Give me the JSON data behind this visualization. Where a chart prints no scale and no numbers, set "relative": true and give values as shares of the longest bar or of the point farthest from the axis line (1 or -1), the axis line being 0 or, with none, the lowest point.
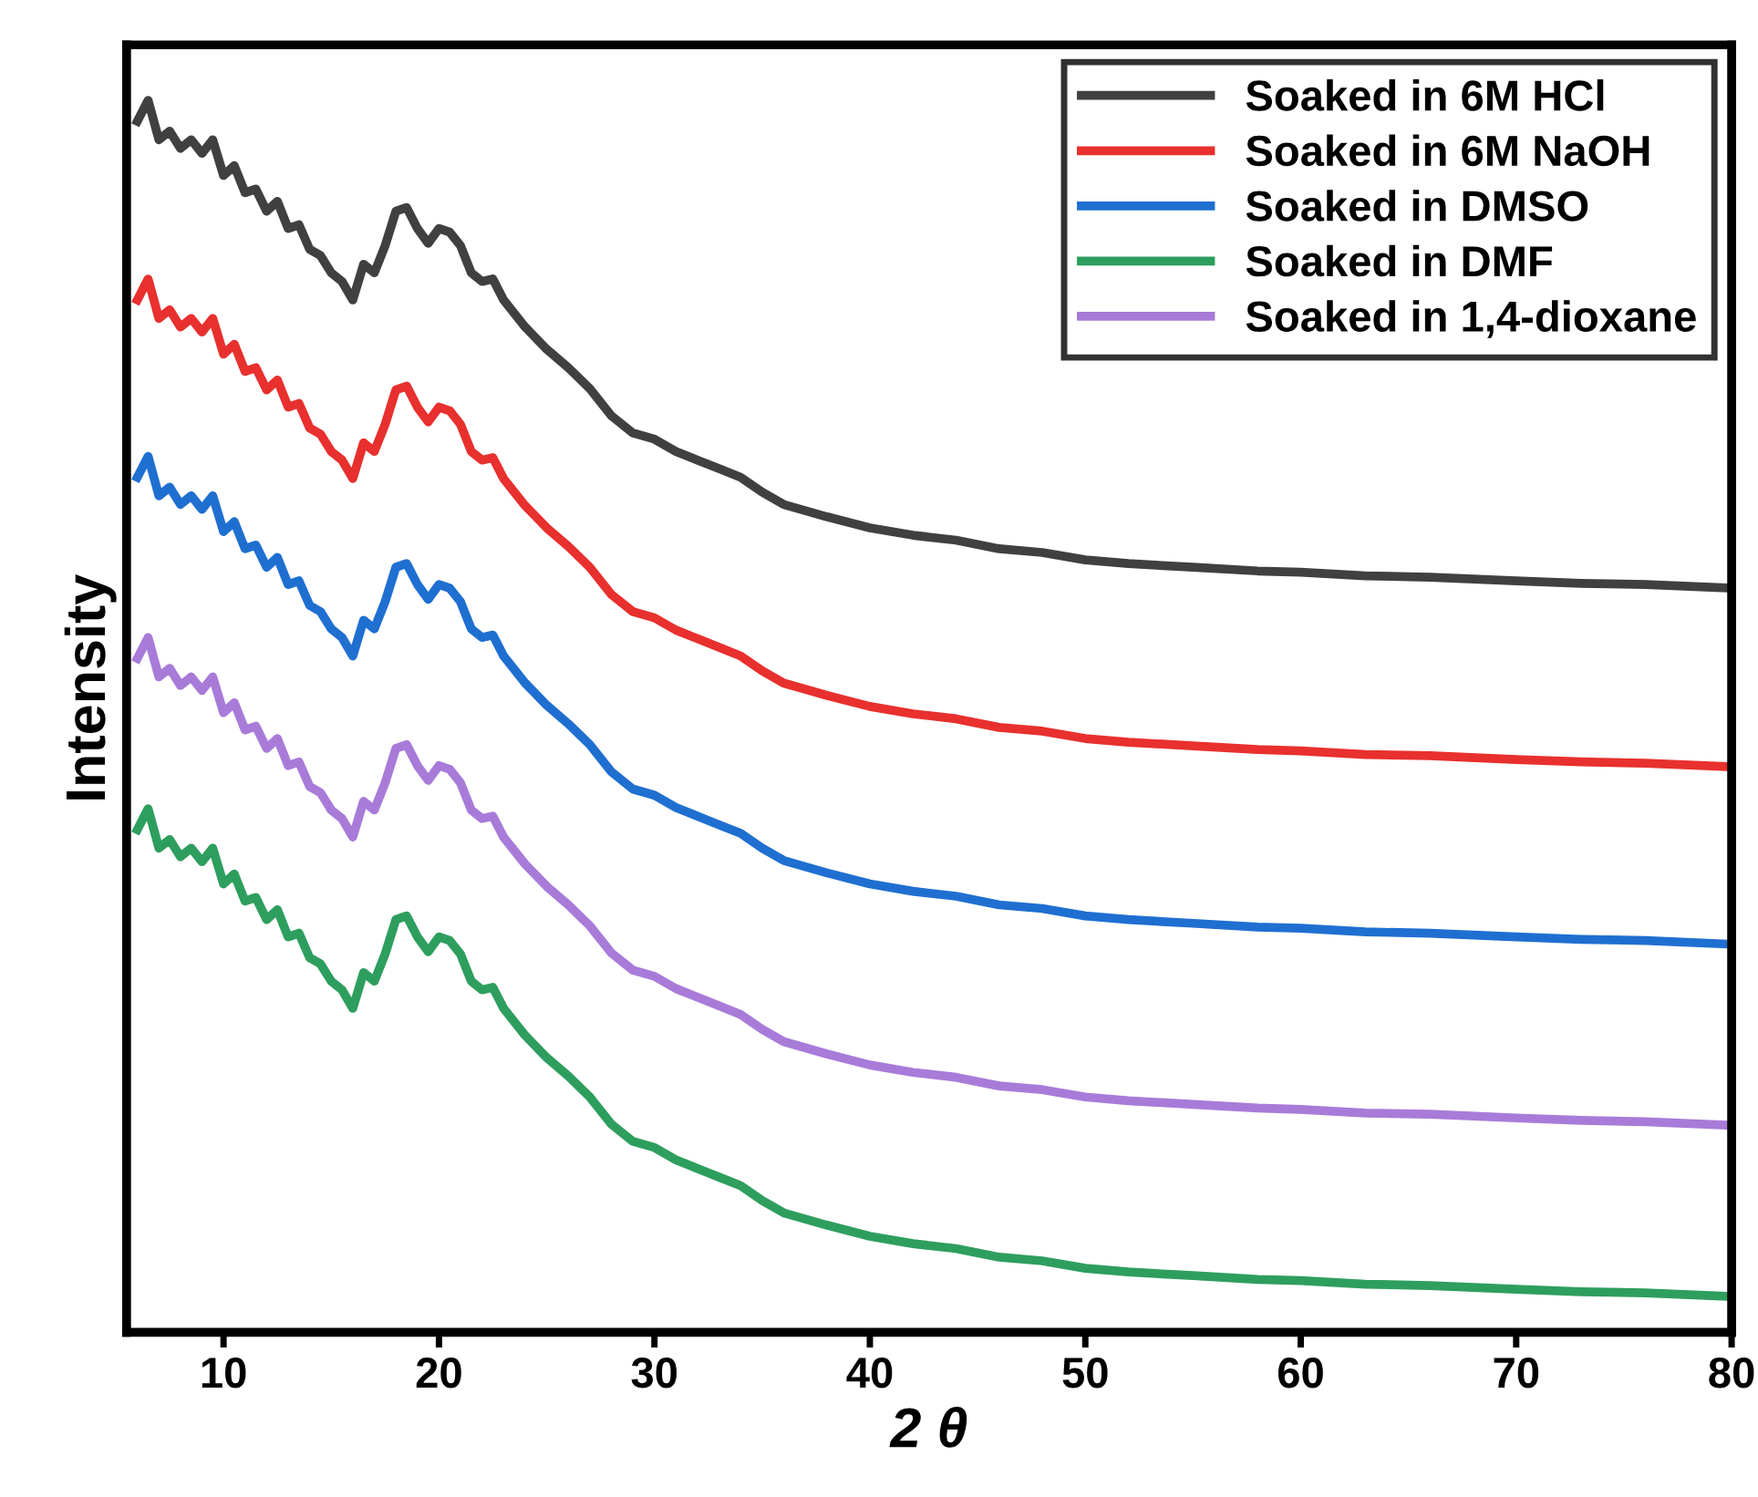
{
  "chart_data": {
    "type": "line",
    "relative": true,
    "xlabel": "2 θ",
    "ylabel": "Intensity",
    "xlim": [
      5.5,
      80
    ],
    "xticks": [
      10,
      20,
      30,
      40,
      50,
      60,
      70,
      80
    ],
    "tick_labels": "x",
    "grid": false,
    "legend": "top right",
    "marker": "none",
    "line_style": "solid",
    "x": [
      6,
      6.5,
      7,
      7.5,
      8,
      8.5,
      9,
      9.5,
      10,
      10.5,
      11,
      11.5,
      12,
      12.5,
      13,
      13.5,
      14,
      14.5,
      15,
      15.5,
      16,
      16.5,
      17,
      17.5,
      18,
      18.5,
      19,
      19.5,
      20,
      20.5,
      21,
      21.5,
      22,
      22.5,
      23,
      24,
      25,
      26,
      27,
      28,
      29,
      30,
      31,
      32,
      33,
      34,
      35,
      36,
      38,
      40,
      42,
      44,
      46,
      48,
      50,
      52,
      55,
      58,
      60,
      63,
      66,
      70,
      73,
      76,
      80
    ],
    "series": [
      {
        "name": "Soaked in 6M HCl",
        "color": "#404040",
        "values": [
          0.983,
          1.0,
          0.968,
          0.975,
          0.961,
          0.968,
          0.957,
          0.968,
          0.939,
          0.947,
          0.925,
          0.928,
          0.91,
          0.918,
          0.896,
          0.899,
          0.879,
          0.874,
          0.86,
          0.853,
          0.838,
          0.867,
          0.86,
          0.882,
          0.91,
          0.913,
          0.896,
          0.884,
          0.896,
          0.893,
          0.882,
          0.86,
          0.853,
          0.855,
          0.838,
          0.816,
          0.798,
          0.783,
          0.766,
          0.744,
          0.73,
          0.725,
          0.715,
          0.708,
          0.701,
          0.694,
          0.682,
          0.672,
          0.662,
          0.653,
          0.647,
          0.643,
          0.636,
          0.633,
          0.627,
          0.624,
          0.621,
          0.618,
          0.617,
          0.614,
          0.613,
          0.61,
          0.608,
          0.607,
          0.604
        ]
      },
      {
        "name": "Soaked in 6M NaOH",
        "color": "#e8302e",
        "values": [
          0.838,
          0.855,
          0.823,
          0.83,
          0.816,
          0.823,
          0.812,
          0.823,
          0.794,
          0.802,
          0.78,
          0.783,
          0.765,
          0.773,
          0.751,
          0.754,
          0.734,
          0.729,
          0.715,
          0.708,
          0.693,
          0.722,
          0.715,
          0.737,
          0.765,
          0.768,
          0.751,
          0.739,
          0.751,
          0.748,
          0.737,
          0.715,
          0.708,
          0.71,
          0.693,
          0.671,
          0.653,
          0.638,
          0.621,
          0.599,
          0.585,
          0.58,
          0.57,
          0.563,
          0.556,
          0.549,
          0.537,
          0.527,
          0.517,
          0.508,
          0.502,
          0.498,
          0.491,
          0.488,
          0.482,
          0.479,
          0.476,
          0.473,
          0.472,
          0.469,
          0.468,
          0.465,
          0.463,
          0.462,
          0.459
        ]
      },
      {
        "name": "Soaked in DMSO",
        "color": "#1f6fd1",
        "values": [
          0.694,
          0.711,
          0.679,
          0.686,
          0.672,
          0.679,
          0.668,
          0.679,
          0.65,
          0.658,
          0.636,
          0.639,
          0.621,
          0.629,
          0.607,
          0.61,
          0.59,
          0.585,
          0.571,
          0.564,
          0.549,
          0.578,
          0.571,
          0.593,
          0.621,
          0.624,
          0.607,
          0.595,
          0.607,
          0.604,
          0.593,
          0.571,
          0.564,
          0.566,
          0.549,
          0.527,
          0.509,
          0.494,
          0.477,
          0.455,
          0.441,
          0.436,
          0.426,
          0.419,
          0.412,
          0.405,
          0.393,
          0.383,
          0.373,
          0.364,
          0.358,
          0.354,
          0.347,
          0.344,
          0.338,
          0.335,
          0.332,
          0.329,
          0.328,
          0.325,
          0.324,
          0.321,
          0.319,
          0.318,
          0.315
        ]
      },
      {
        "name": "Soaked in DMF",
        "color": "#2e9e5e",
        "values": [
          0.408,
          0.425,
          0.393,
          0.4,
          0.386,
          0.393,
          0.382,
          0.393,
          0.364,
          0.372,
          0.35,
          0.353,
          0.335,
          0.343,
          0.321,
          0.324,
          0.304,
          0.299,
          0.285,
          0.278,
          0.263,
          0.292,
          0.285,
          0.307,
          0.335,
          0.338,
          0.321,
          0.309,
          0.321,
          0.318,
          0.307,
          0.285,
          0.278,
          0.28,
          0.263,
          0.241,
          0.223,
          0.208,
          0.191,
          0.169,
          0.155,
          0.15,
          0.14,
          0.133,
          0.126,
          0.119,
          0.107,
          0.097,
          0.087,
          0.078,
          0.072,
          0.068,
          0.061,
          0.058,
          0.052,
          0.049,
          0.046,
          0.043,
          0.042,
          0.039,
          0.038,
          0.035,
          0.033,
          0.032,
          0.029
        ]
      },
      {
        "name": "Soaked in 1,4-dioxane",
        "color": "#a87bd9",
        "values": [
          0.547,
          0.564,
          0.532,
          0.539,
          0.525,
          0.532,
          0.521,
          0.532,
          0.503,
          0.511,
          0.489,
          0.492,
          0.474,
          0.482,
          0.46,
          0.463,
          0.443,
          0.438,
          0.424,
          0.417,
          0.402,
          0.431,
          0.424,
          0.446,
          0.474,
          0.477,
          0.46,
          0.448,
          0.46,
          0.457,
          0.446,
          0.424,
          0.417,
          0.419,
          0.402,
          0.38,
          0.362,
          0.347,
          0.33,
          0.308,
          0.294,
          0.289,
          0.279,
          0.272,
          0.265,
          0.258,
          0.246,
          0.236,
          0.226,
          0.217,
          0.211,
          0.207,
          0.2,
          0.197,
          0.191,
          0.188,
          0.185,
          0.182,
          0.181,
          0.178,
          0.177,
          0.174,
          0.172,
          0.171,
          0.168
        ]
      }
    ]
  }
}
